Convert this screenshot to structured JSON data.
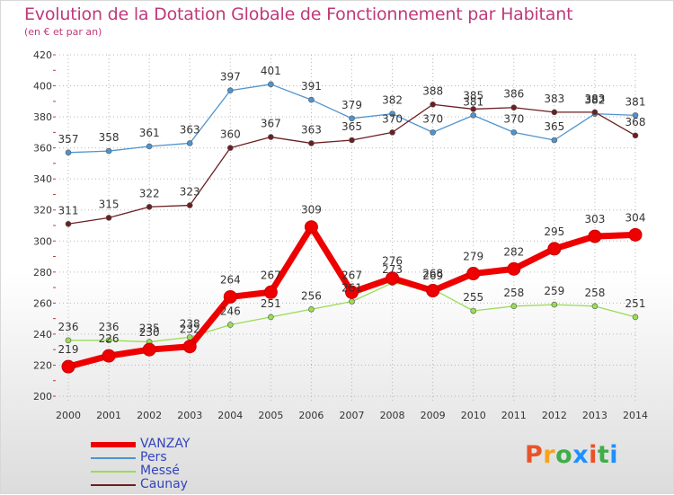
{
  "title": "Evolution de la Dotation Globale de Fonctionnement par Habitant",
  "subtitle": "(en € et par an)",
  "chart_data": {
    "type": "line",
    "title": "Evolution de la Dotation Globale de Fonctionnement par Habitant",
    "subtitle": "(en € et par an)",
    "xlabel": "",
    "ylabel": "",
    "x": [
      "2000",
      "2001",
      "2002",
      "2003",
      "2004",
      "2005",
      "2006",
      "2007",
      "2008",
      "2009",
      "2010",
      "2011",
      "2012",
      "2013",
      "2014"
    ],
    "ylim": [
      200,
      420
    ],
    "yticks": [
      200,
      220,
      240,
      260,
      280,
      300,
      320,
      340,
      360,
      380,
      400,
      420
    ],
    "grid": true,
    "series": [
      {
        "name": "VANZAY",
        "color": "#ee0000",
        "values": [
          219,
          226,
          230,
          232,
          264,
          267,
          309,
          267,
          276,
          268,
          279,
          282,
          295,
          303,
          304
        ]
      },
      {
        "name": "Pers",
        "color": "#4f94cf",
        "values": [
          357,
          358,
          361,
          363,
          397,
          401,
          391,
          379,
          382,
          370,
          381,
          370,
          365,
          382,
          381
        ]
      },
      {
        "name": "Messé",
        "color": "#99dd55",
        "values": [
          236,
          236,
          235,
          238,
          246,
          251,
          256,
          261,
          273,
          269,
          255,
          258,
          259,
          258,
          251
        ]
      },
      {
        "name": "Caunay",
        "color": "#6b1f22",
        "values": [
          311,
          315,
          322,
          323,
          360,
          367,
          363,
          365,
          370,
          388,
          385,
          386,
          383,
          383,
          368
        ]
      }
    ]
  },
  "legend": [
    {
      "label": "VANZAY"
    },
    {
      "label": "Pers"
    },
    {
      "label": "Messé"
    },
    {
      "label": "Caunay"
    }
  ],
  "logo": {
    "text": "Proxiti",
    "colors": [
      "#e8532a",
      "#f7a21b",
      "#3fae49",
      "#1e90ff",
      "#e8532a",
      "#3fae49",
      "#1e90ff"
    ]
  }
}
